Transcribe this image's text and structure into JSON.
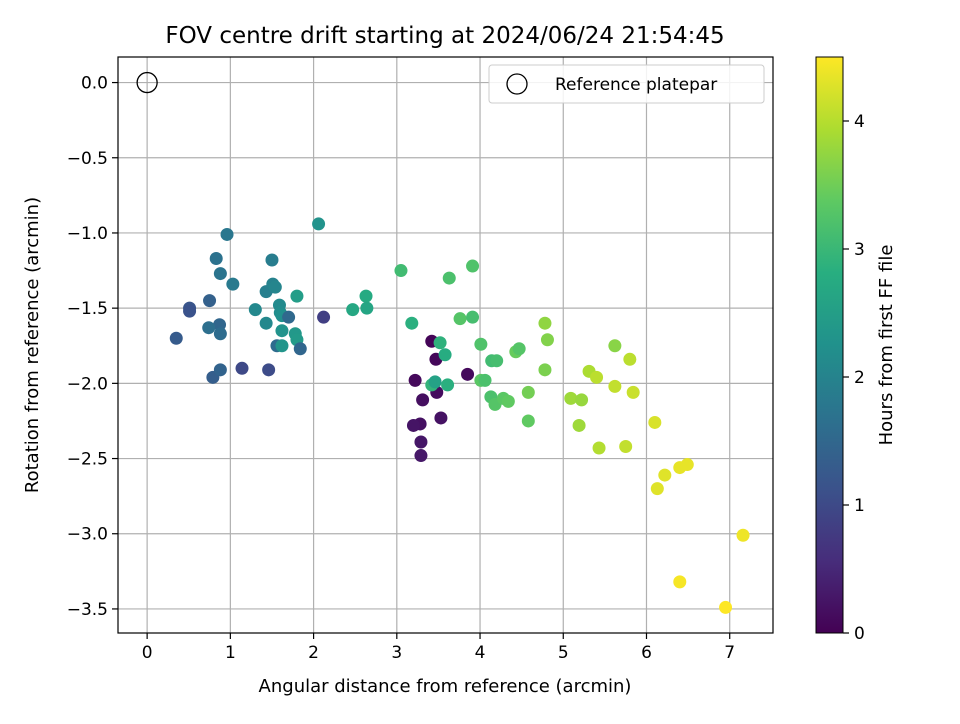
{
  "chart_data": {
    "type": "scatter",
    "title": "FOV centre drift starting at 2024/06/24 21:54:45",
    "xlabel": "Angular distance from reference (arcmin)",
    "ylabel": "Rotation from reference (arcmin)",
    "xlim": [
      -0.35,
      7.52
    ],
    "ylim": [
      -3.66,
      0.17
    ],
    "xticks": [
      0,
      1,
      2,
      3,
      4,
      5,
      6,
      7
    ],
    "yticks": [
      0.0,
      -0.5,
      -1.0,
      -1.5,
      -2.0,
      -2.5,
      -3.0,
      -3.5
    ],
    "xtick_labels": [
      "0",
      "1",
      "2",
      "3",
      "4",
      "5",
      "6",
      "7"
    ],
    "ytick_labels": [
      "0.0",
      "−0.5",
      "−1.0",
      "−1.5",
      "−2.0",
      "−2.5",
      "−3.0",
      "−3.5"
    ],
    "grid": true,
    "legend": {
      "placement": "upper right",
      "entries": [
        "Reference platepar"
      ]
    },
    "reference_point": {
      "x": 0,
      "y": 0,
      "marker": "open-circle"
    },
    "colorbar": {
      "label": "Hours from first FF file",
      "colormap": "viridis",
      "range": [
        0,
        4.5
      ],
      "ticks": [
        0,
        1,
        2,
        3,
        4
      ],
      "tick_labels": [
        "0",
        "1",
        "2",
        "3",
        "4"
      ]
    },
    "points": [
      {
        "x": 3.42,
        "y": -1.72,
        "c": 0.05
      },
      {
        "x": 3.47,
        "y": -1.84,
        "c": 0.08
      },
      {
        "x": 3.85,
        "y": -1.94,
        "c": 0.12
      },
      {
        "x": 3.22,
        "y": -1.98,
        "c": 0.1
      },
      {
        "x": 3.48,
        "y": -2.06,
        "c": 0.15
      },
      {
        "x": 3.31,
        "y": -2.11,
        "c": 0.18
      },
      {
        "x": 3.53,
        "y": -2.23,
        "c": 0.22
      },
      {
        "x": 3.28,
        "y": -2.27,
        "c": 0.2
      },
      {
        "x": 3.2,
        "y": -2.28,
        "c": 0.25
      },
      {
        "x": 3.29,
        "y": -2.39,
        "c": 0.28
      },
      {
        "x": 3.29,
        "y": -2.48,
        "c": 0.3
      },
      {
        "x": 2.12,
        "y": -1.56,
        "c": 0.85
      },
      {
        "x": 1.14,
        "y": -1.9,
        "c": 1.0
      },
      {
        "x": 1.46,
        "y": -1.91,
        "c": 1.05
      },
      {
        "x": 0.35,
        "y": -1.7,
        "c": 1.3
      },
      {
        "x": 0.51,
        "y": -1.5,
        "c": 1.2
      },
      {
        "x": 0.51,
        "y": -1.52,
        "c": 1.15
      },
      {
        "x": 0.79,
        "y": -1.96,
        "c": 1.35
      },
      {
        "x": 0.88,
        "y": -1.91,
        "c": 1.45
      },
      {
        "x": 0.75,
        "y": -1.45,
        "c": 1.4
      },
      {
        "x": 0.87,
        "y": -1.61,
        "c": 1.5
      },
      {
        "x": 0.88,
        "y": -1.67,
        "c": 1.6
      },
      {
        "x": 0.74,
        "y": -1.63,
        "c": 1.65
      },
      {
        "x": 0.83,
        "y": -1.17,
        "c": 1.7
      },
      {
        "x": 0.96,
        "y": -1.01,
        "c": 1.8
      },
      {
        "x": 0.88,
        "y": -1.27,
        "c": 1.75
      },
      {
        "x": 1.03,
        "y": -1.34,
        "c": 1.85
      },
      {
        "x": 1.5,
        "y": -1.18,
        "c": 1.9
      },
      {
        "x": 1.43,
        "y": -1.39,
        "c": 1.95
      },
      {
        "x": 1.51,
        "y": -1.34,
        "c": 2.0
      },
      {
        "x": 1.54,
        "y": -1.36,
        "c": 2.05
      },
      {
        "x": 1.3,
        "y": -1.51,
        "c": 2.1
      },
      {
        "x": 1.43,
        "y": -1.6,
        "c": 2.1
      },
      {
        "x": 1.59,
        "y": -1.48,
        "c": 2.15
      },
      {
        "x": 1.6,
        "y": -1.53,
        "c": 2.2
      },
      {
        "x": 1.62,
        "y": -1.55,
        "c": 2.25
      },
      {
        "x": 1.7,
        "y": -1.56,
        "c": 1.55
      },
      {
        "x": 1.56,
        "y": -1.75,
        "c": 1.6
      },
      {
        "x": 1.62,
        "y": -1.65,
        "c": 2.3
      },
      {
        "x": 1.62,
        "y": -1.75,
        "c": 2.35
      },
      {
        "x": 1.78,
        "y": -1.67,
        "c": 2.4
      },
      {
        "x": 1.8,
        "y": -1.71,
        "c": 2.45
      },
      {
        "x": 1.84,
        "y": -1.77,
        "c": 1.5
      },
      {
        "x": 1.8,
        "y": -1.42,
        "c": 2.5
      },
      {
        "x": 2.06,
        "y": -0.94,
        "c": 2.3
      },
      {
        "x": 2.47,
        "y": -1.51,
        "c": 2.7
      },
      {
        "x": 2.63,
        "y": -1.42,
        "c": 2.75
      },
      {
        "x": 2.64,
        "y": -1.5,
        "c": 2.65
      },
      {
        "x": 3.05,
        "y": -1.25,
        "c": 3.1
      },
      {
        "x": 3.18,
        "y": -1.6,
        "c": 2.85
      },
      {
        "x": 3.52,
        "y": -1.73,
        "c": 2.9
      },
      {
        "x": 3.58,
        "y": -1.81,
        "c": 2.8
      },
      {
        "x": 3.42,
        "y": -2.01,
        "c": 2.95
      },
      {
        "x": 3.46,
        "y": -1.99,
        "c": 2.6
      },
      {
        "x": 3.61,
        "y": -2.01,
        "c": 2.85
      },
      {
        "x": 3.63,
        "y": -1.3,
        "c": 3.2
      },
      {
        "x": 3.76,
        "y": -1.57,
        "c": 3.3
      },
      {
        "x": 3.91,
        "y": -1.56,
        "c": 3.15
      },
      {
        "x": 3.91,
        "y": -1.22,
        "c": 3.25
      },
      {
        "x": 4.01,
        "y": -1.74,
        "c": 3.25
      },
      {
        "x": 4.01,
        "y": -1.98,
        "c": 3.35
      },
      {
        "x": 4.06,
        "y": -1.98,
        "c": 3.2
      },
      {
        "x": 4.14,
        "y": -1.85,
        "c": 3.1
      },
      {
        "x": 4.2,
        "y": -1.85,
        "c": 3.15
      },
      {
        "x": 4.13,
        "y": -2.09,
        "c": 3.2
      },
      {
        "x": 4.18,
        "y": -2.14,
        "c": 3.3
      },
      {
        "x": 4.28,
        "y": -2.1,
        "c": 3.35
      },
      {
        "x": 4.34,
        "y": -2.12,
        "c": 3.4
      },
      {
        "x": 4.43,
        "y": -1.79,
        "c": 3.45
      },
      {
        "x": 4.47,
        "y": -1.77,
        "c": 3.3
      },
      {
        "x": 4.58,
        "y": -2.06,
        "c": 3.55
      },
      {
        "x": 4.58,
        "y": -2.25,
        "c": 3.4
      },
      {
        "x": 4.78,
        "y": -1.6,
        "c": 3.75
      },
      {
        "x": 4.81,
        "y": -1.71,
        "c": 3.65
      },
      {
        "x": 4.78,
        "y": -1.91,
        "c": 3.6
      },
      {
        "x": 5.09,
        "y": -2.1,
        "c": 3.85
      },
      {
        "x": 5.22,
        "y": -2.11,
        "c": 3.8
      },
      {
        "x": 5.19,
        "y": -2.28,
        "c": 3.85
      },
      {
        "x": 5.31,
        "y": -1.92,
        "c": 3.95
      },
      {
        "x": 5.4,
        "y": -1.96,
        "c": 4.05
      },
      {
        "x": 5.43,
        "y": -2.43,
        "c": 4.0
      },
      {
        "x": 5.62,
        "y": -1.75,
        "c": 3.7
      },
      {
        "x": 5.62,
        "y": -2.02,
        "c": 4.1
      },
      {
        "x": 5.75,
        "y": -2.42,
        "c": 4.1
      },
      {
        "x": 5.8,
        "y": -1.84,
        "c": 4.05
      },
      {
        "x": 5.84,
        "y": -2.06,
        "c": 4.15
      },
      {
        "x": 6.1,
        "y": -2.26,
        "c": 4.25
      },
      {
        "x": 6.13,
        "y": -2.7,
        "c": 4.3
      },
      {
        "x": 6.22,
        "y": -2.61,
        "c": 4.3
      },
      {
        "x": 6.4,
        "y": -2.56,
        "c": 4.35
      },
      {
        "x": 6.49,
        "y": -2.54,
        "c": 4.35
      },
      {
        "x": 6.4,
        "y": -3.32,
        "c": 4.45
      },
      {
        "x": 6.95,
        "y": -3.49,
        "c": 4.5
      },
      {
        "x": 7.16,
        "y": -3.01,
        "c": 4.4
      }
    ]
  }
}
